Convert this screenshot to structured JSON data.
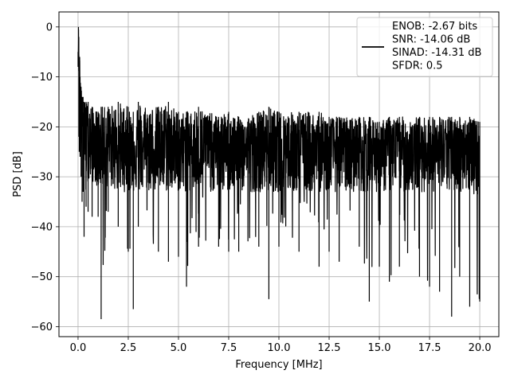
{
  "chart_data": {
    "type": "line",
    "title": "",
    "xlabel": "Frequency [MHz]",
    "ylabel": "PSD [dB]",
    "xlim": [
      -0.95,
      20.95
    ],
    "ylim": [
      -62,
      3
    ],
    "xticks": [
      0.0,
      2.5,
      5.0,
      7.5,
      10.0,
      12.5,
      15.0,
      17.5,
      20.0
    ],
    "xtick_labels": [
      "0.0",
      "2.5",
      "5.0",
      "7.5",
      "10.0",
      "12.5",
      "15.0",
      "17.5",
      "20.0"
    ],
    "yticks": [
      0,
      -10,
      -20,
      -30,
      -40,
      -50,
      -60
    ],
    "ytick_labels": [
      "0",
      "−10",
      "−20",
      "−30",
      "−40",
      "−50",
      "−60"
    ],
    "grid": true,
    "legend_position": "top-right",
    "legend": {
      "lines": [
        "ENOB: -2.67 bits",
        "SNR: -14.06 dB",
        "SINAD: -14.31 dB",
        "SFDR: 0.5"
      ]
    },
    "series": [
      {
        "color": "#000000",
        "x": [
          0.0,
          0.02,
          0.04,
          0.06,
          0.08,
          0.1,
          0.15,
          0.2,
          0.25,
          0.3,
          0.4,
          0.5,
          0.7,
          1.0,
          1.15,
          1.5,
          2.0,
          2.5,
          2.75,
          3.0,
          4.0,
          4.5,
          5.0,
          5.4,
          6.0,
          7.0,
          7.5,
          8.0,
          9.0,
          9.5,
          10.0,
          11.0,
          12.0,
          12.5,
          13.0,
          14.0,
          14.5,
          15.0,
          15.5,
          16.0,
          17.0,
          17.5,
          18.0,
          18.6,
          19.0,
          19.5,
          20.0
        ],
        "y": [
          -5,
          0,
          -2,
          -8,
          -6,
          -11,
          -13,
          -16,
          -18,
          -19,
          -21,
          -22,
          -22,
          -23,
          -23,
          -23,
          -24,
          -24,
          -24,
          -24,
          -24,
          -24,
          -24,
          -24,
          -24,
          -24,
          -24,
          -24,
          -24,
          -24,
          -24,
          -24,
          -24,
          -24,
          -24,
          -24,
          -24,
          -24,
          -24,
          -24,
          -24,
          -24,
          -24,
          -24,
          -24,
          -24,
          -25
        ],
        "upper_envelope": [
          -5,
          0,
          -2,
          -6,
          -6,
          -10,
          -12,
          -14,
          -14,
          -15,
          -15,
          -15,
          -16,
          -17,
          -16,
          -16,
          -15,
          -16,
          -17,
          -15,
          -16,
          -15,
          -17,
          -17,
          -16,
          -18,
          -17,
          -18,
          -17,
          -16,
          -17,
          -17,
          -17,
          -18,
          -18,
          -18,
          -18,
          -19,
          -18,
          -18,
          -18,
          -18,
          -18,
          -18,
          -18,
          -18,
          -19
        ],
        "lower_envelope": [
          -8,
          -3,
          -22,
          -25,
          -20,
          -26,
          -30,
          -35,
          -33,
          -42,
          -36,
          -37,
          -38,
          -38,
          -58.5,
          -37,
          -40,
          -45,
          -56.5,
          -40,
          -45,
          -47,
          -46,
          -52,
          -44,
          -44,
          -45,
          -45,
          -44,
          -54.5,
          -44,
          -45,
          -48,
          -45,
          -47,
          -44,
          -55,
          -48,
          -51,
          -48,
          -50,
          -52,
          -53,
          -58,
          -50,
          -56,
          -55
        ]
      }
    ]
  }
}
